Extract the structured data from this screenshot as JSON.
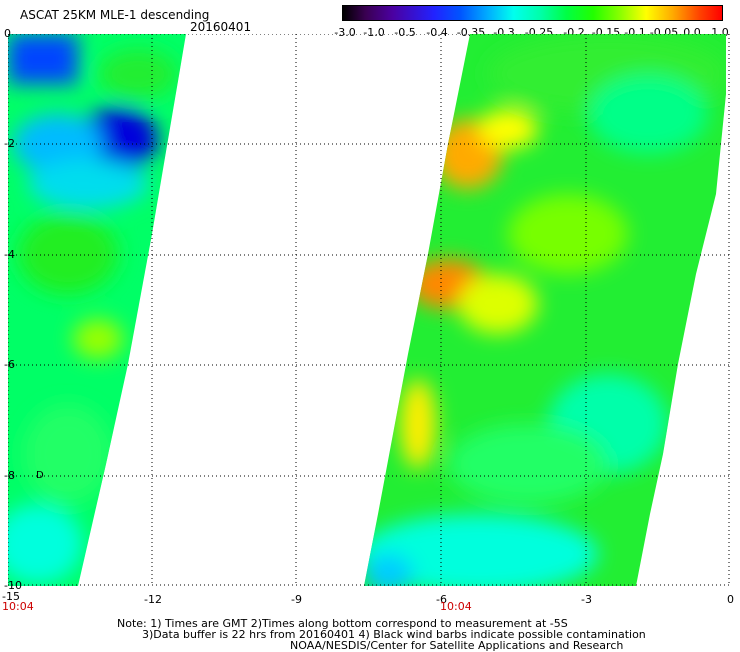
{
  "header": {
    "title": "ASCAT 25KM MLE-1 descending",
    "date": "20160401"
  },
  "colorbar": {
    "labels": [
      "-3.0",
      "-1.0",
      "-0.5",
      "-0.4",
      "-0.35",
      "-0.3",
      "-0.25",
      "-0.2",
      "-0.15",
      "-0.1",
      "-0.05",
      "0.0",
      "1.0"
    ],
    "colors": [
      "#000000",
      "#3a0052",
      "#4b00a0",
      "#2222ff",
      "#0055ff",
      "#00aaff",
      "#00ffee",
      "#00ffaa",
      "#00ff44",
      "#22ff00",
      "#88ff00",
      "#ffff00",
      "#ffaa00",
      "#ff4400",
      "#ff0000"
    ]
  },
  "axes": {
    "x_ticks": [
      "-15",
      "-12",
      "-9",
      "-6",
      "-3",
      "0"
    ],
    "y_ticks": [
      "0",
      "-2",
      "-4",
      "-6",
      "-8",
      "-10"
    ],
    "time_labels": [
      "10:04",
      "10:04"
    ]
  },
  "map": {
    "lon_range": [
      -15,
      0
    ],
    "lat_range": [
      -10,
      0
    ],
    "swaths": [
      {
        "name": "western-swath",
        "lon_west": -15,
        "lon_east_top": -11.5,
        "lon_east_bottom": -13.6
      },
      {
        "name": "eastern-swath",
        "lon_west_top": -5.8,
        "lon_west_bottom": -7.8,
        "lon_east_top": -0.1,
        "lon_east_bottom": -2.0
      }
    ],
    "marker": "D"
  },
  "notes": {
    "line1": "Note: 1) Times are GMT 2)Times along bottom correspond to measurement at -5S",
    "line2": "3)Data buffer is 22 hrs from 20160401 4) Black wind barbs indicate possible contamination",
    "line3": "NOAA/NESDIS/Center for Satellite Applications and Research"
  }
}
